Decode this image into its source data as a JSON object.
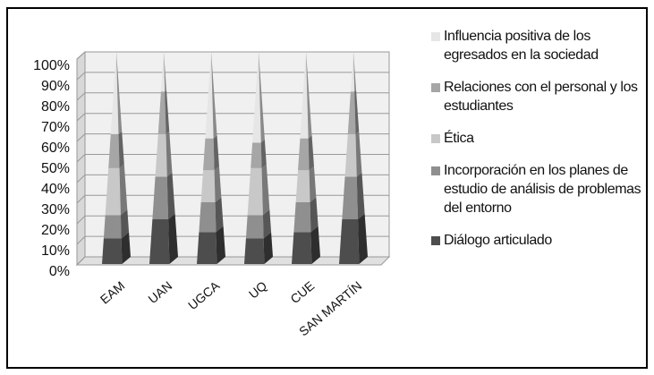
{
  "chart_data": {
    "type": "pyramid",
    "categories": [
      "EAM",
      "UAN",
      "UGCA",
      "UQ",
      "CUE",
      "SAN MARTÍN"
    ],
    "series": [
      {
        "name": "Diálogo articulado",
        "color": "#4d4d4d",
        "values": [
          12,
          21,
          15,
          12,
          15,
          21
        ]
      },
      {
        "name": "Incorporación en los planes de estudio de análisis de problemas del entorno",
        "color": "#8f8f8f",
        "values": [
          11,
          20,
          14,
          11,
          14,
          20
        ]
      },
      {
        "name": "Ética",
        "color": "#c8c8c8",
        "values": [
          22,
          20,
          15,
          22,
          15,
          20
        ]
      },
      {
        "name": "Relaciones con el personal y los estudiantes",
        "color": "#a6a6a6",
        "values": [
          16,
          20,
          15,
          12,
          15,
          20
        ]
      },
      {
        "name": "Influencia positiva de los egresados en la sociedad",
        "color": "#e6e6e6",
        "values": [
          39,
          19,
          41,
          43,
          41,
          19
        ]
      }
    ],
    "ylim": [
      0,
      100
    ],
    "yticks": [
      {
        "value": 0,
        "label": "0%"
      },
      {
        "value": 10,
        "label": "10%"
      },
      {
        "value": 20,
        "label": "20%"
      },
      {
        "value": 30,
        "label": "30%"
      },
      {
        "value": 40,
        "label": "40%"
      },
      {
        "value": 50,
        "label": "50%"
      },
      {
        "value": 60,
        "label": "60%"
      },
      {
        "value": 70,
        "label": "70%"
      },
      {
        "value": 80,
        "label": "80%"
      },
      {
        "value": 90,
        "label": "90%"
      },
      {
        "value": 100,
        "label": "100%"
      }
    ],
    "grid": true
  }
}
